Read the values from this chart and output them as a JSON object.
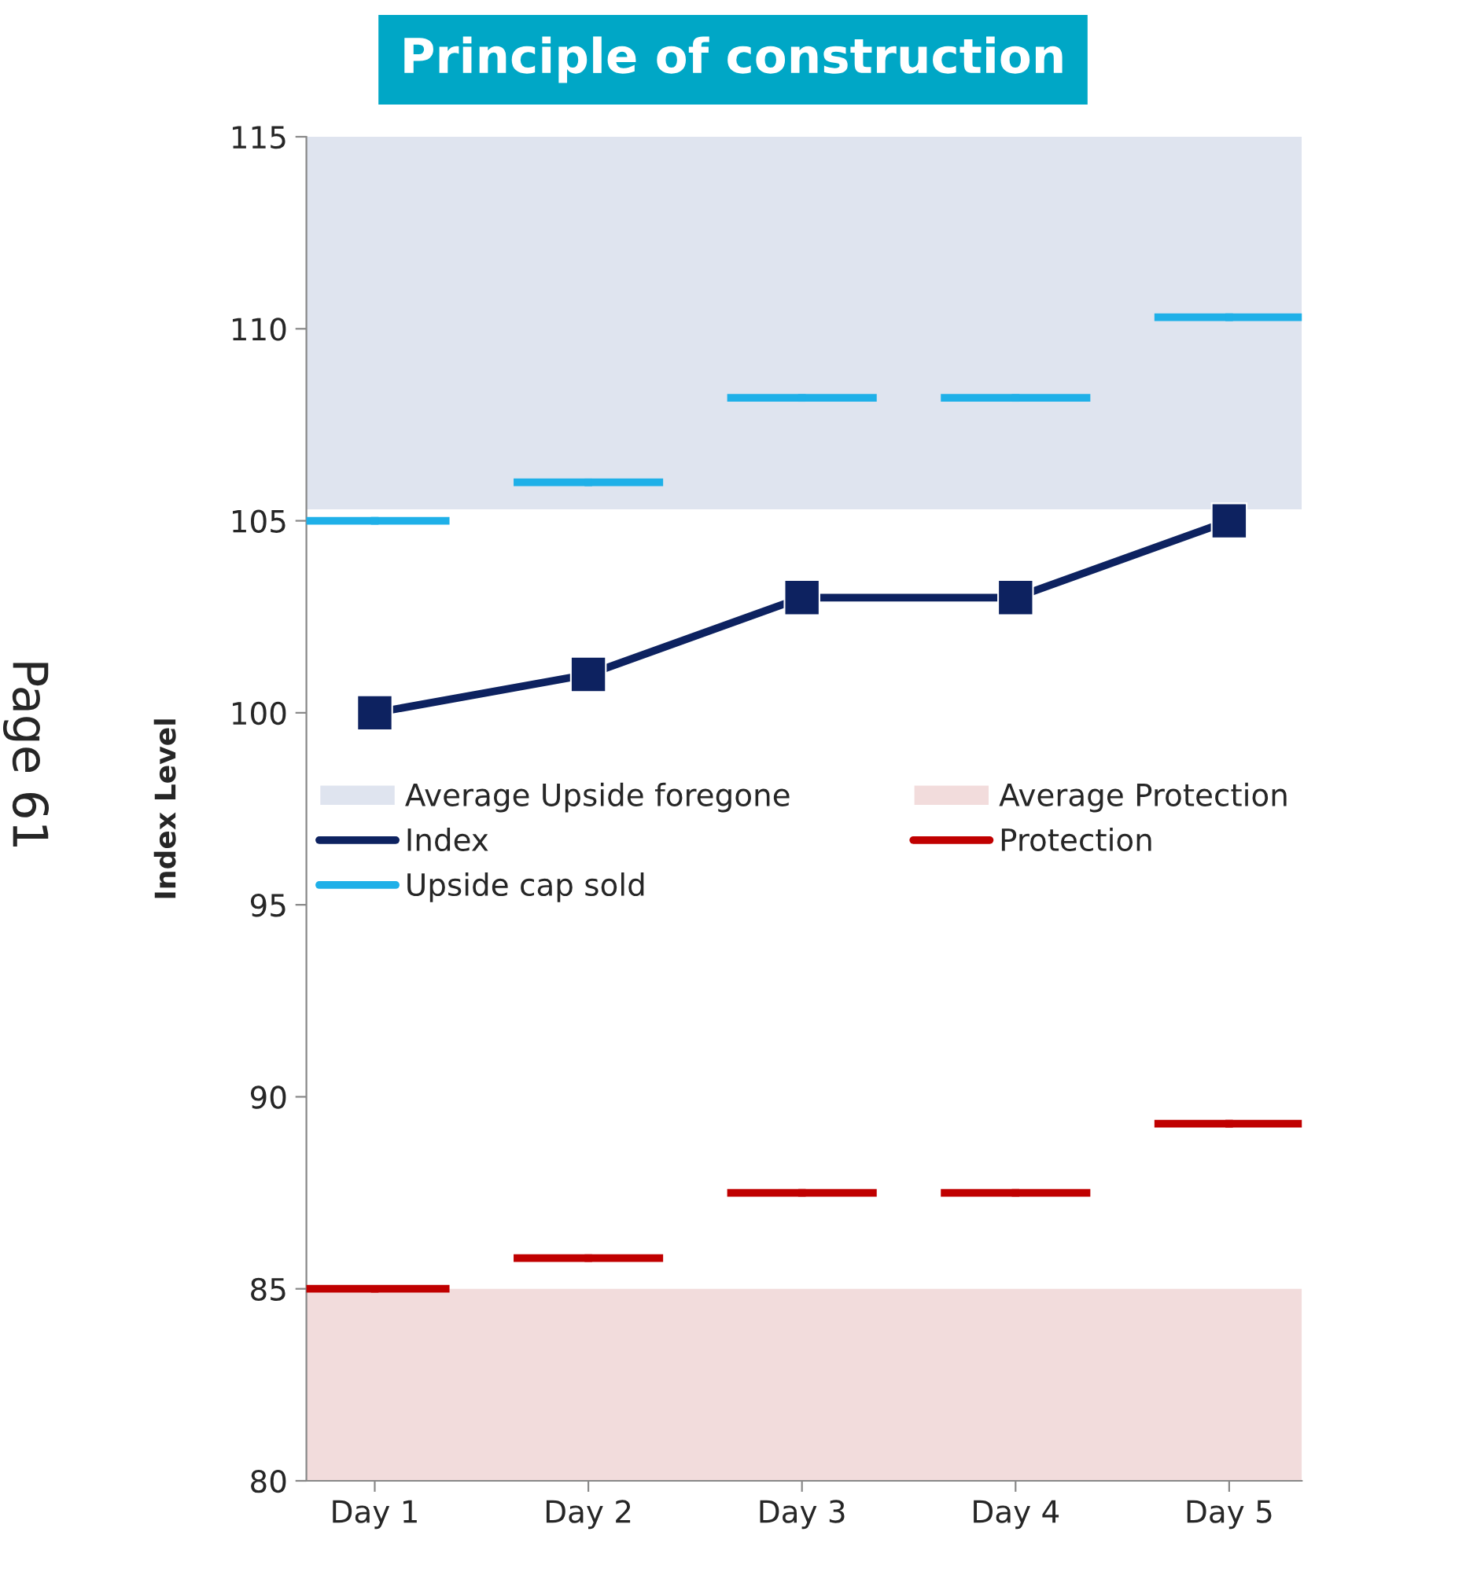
{
  "chart_data": {
    "type": "line",
    "title": "Principle of construction",
    "ylabel": "Index Level",
    "categories": [
      "Day 1",
      "Day 2",
      "Day 3",
      "Day 4",
      "Day 5"
    ],
    "series": [
      {
        "name": "Index",
        "color": "#0d2260",
        "marker": "square",
        "values": [
          100,
          101,
          103,
          103,
          105
        ]
      },
      {
        "name": "Protection",
        "type": "scatter",
        "marker": "square",
        "color": "#c00000",
        "values": [
          85,
          85.8,
          87.5,
          87.5,
          89.3
        ]
      },
      {
        "name": "Upside cap sold",
        "type": "scatter",
        "marker": "square",
        "color": "#1fb0e8",
        "values": [
          105,
          106,
          108.2,
          108.2,
          110.3
        ]
      }
    ],
    "bands": [
      {
        "axis": "y",
        "from": 105.3,
        "to": 115,
        "label": "Average Upside foregone",
        "color": "#dfe4ef"
      },
      {
        "axis": "y",
        "from": 80,
        "to": 85,
        "label": "Average Protection",
        "color": "#f2dcdc"
      }
    ],
    "ylim": [
      80,
      115
    ],
    "yticks": [
      80,
      85,
      90,
      95,
      100,
      105,
      110,
      115
    ],
    "grid": false,
    "legend": "center",
    "annotations": [
      "Page 61"
    ]
  }
}
